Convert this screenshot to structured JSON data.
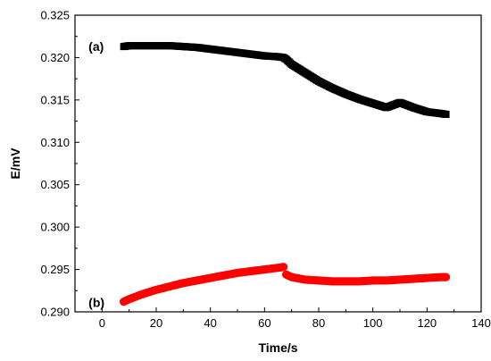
{
  "chart_data": {
    "type": "scatter",
    "xlabel": "Time/s",
    "ylabel": "E/mV",
    "xlim": [
      -10,
      140
    ],
    "ylim": [
      0.29,
      0.325
    ],
    "xticks": [
      0,
      20,
      40,
      60,
      80,
      100,
      120,
      140
    ],
    "yticks": [
      0.29,
      0.295,
      0.3,
      0.305,
      0.31,
      0.315,
      0.32,
      0.325
    ],
    "ytick_labels": [
      "0.290",
      "0.295",
      "0.300",
      "0.305",
      "0.310",
      "0.315",
      "0.320",
      "0.325"
    ],
    "grid": false,
    "series": [
      {
        "name": "(a)",
        "marker": "square",
        "color": "#000000",
        "x": [
          8,
          10,
          15,
          20,
          25,
          30,
          35,
          40,
          45,
          50,
          55,
          60,
          65,
          67,
          68,
          70,
          75,
          80,
          85,
          90,
          95,
          100,
          105,
          110,
          115,
          120,
          125,
          127
        ],
        "y": [
          0.3213,
          0.3214,
          0.3214,
          0.3214,
          0.3214,
          0.3213,
          0.3212,
          0.321,
          0.3208,
          0.3206,
          0.3204,
          0.3202,
          0.3201,
          0.32,
          0.3198,
          0.3192,
          0.3182,
          0.3172,
          0.3164,
          0.3157,
          0.3151,
          0.3146,
          0.3141,
          0.3147,
          0.3141,
          0.3136,
          0.3134,
          0.3133
        ]
      },
      {
        "name": "(b)",
        "marker": "circle",
        "color": "#ff0000",
        "x": [
          8,
          10,
          15,
          20,
          25,
          30,
          35,
          40,
          45,
          50,
          55,
          60,
          65,
          67,
          68,
          70,
          75,
          80,
          85,
          90,
          95,
          100,
          105,
          110,
          115,
          120,
          125,
          127
        ],
        "y": [
          0.2912,
          0.2915,
          0.2921,
          0.2926,
          0.293,
          0.2934,
          0.2937,
          0.294,
          0.2943,
          0.2946,
          0.2948,
          0.295,
          0.2952,
          0.2953,
          0.2944,
          0.2941,
          0.2938,
          0.2937,
          0.2936,
          0.2936,
          0.2936,
          0.2937,
          0.2937,
          0.2938,
          0.2939,
          0.294,
          0.2941,
          0.2941
        ]
      }
    ]
  }
}
